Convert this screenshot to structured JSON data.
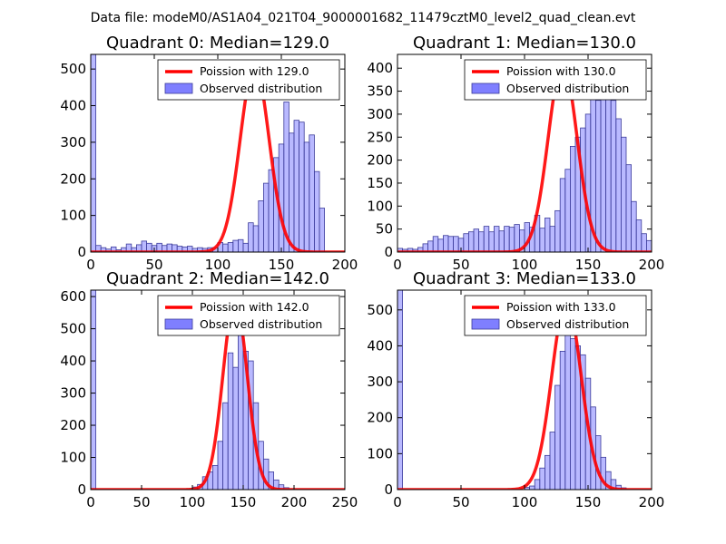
{
  "suptitle": "Data file: modeM0/AS1A04_021T04_9000001682_11479cztM0_level2_quad_clean.evt",
  "colors": {
    "bar_fill": "#7f7fff",
    "bar_edge": "#3b3b9a",
    "curve": "#ff0000"
  },
  "chart_data": [
    {
      "type": "bar",
      "title": "Quadrant 0: Median=129.0",
      "xlim": [
        0,
        200
      ],
      "ylim": [
        0,
        540
      ],
      "xticks": [
        0,
        50,
        100,
        150,
        200
      ],
      "yticks": [
        0,
        100,
        200,
        300,
        400,
        500
      ],
      "bin_width": 4,
      "legend": {
        "curve_label": "Poission with 129.0",
        "bars_label": "Observed distribution",
        "placement": "top-right"
      },
      "poisson_mean": 129.0,
      "poisson_peak": 510,
      "bars": [
        {
          "x": 0,
          "value": 540
        },
        {
          "x": 4,
          "value": 18
        },
        {
          "x": 8,
          "value": 12
        },
        {
          "x": 12,
          "value": 8
        },
        {
          "x": 16,
          "value": 14
        },
        {
          "x": 20,
          "value": 6
        },
        {
          "x": 24,
          "value": 12
        },
        {
          "x": 28,
          "value": 22
        },
        {
          "x": 32,
          "value": 12
        },
        {
          "x": 36,
          "value": 20
        },
        {
          "x": 40,
          "value": 30
        },
        {
          "x": 44,
          "value": 24
        },
        {
          "x": 48,
          "value": 18
        },
        {
          "x": 52,
          "value": 24
        },
        {
          "x": 56,
          "value": 18
        },
        {
          "x": 60,
          "value": 22
        },
        {
          "x": 64,
          "value": 20
        },
        {
          "x": 68,
          "value": 16
        },
        {
          "x": 72,
          "value": 14
        },
        {
          "x": 76,
          "value": 16
        },
        {
          "x": 80,
          "value": 10
        },
        {
          "x": 84,
          "value": 12
        },
        {
          "x": 88,
          "value": 10
        },
        {
          "x": 92,
          "value": 12
        },
        {
          "x": 96,
          "value": 12
        },
        {
          "x": 100,
          "value": 26
        },
        {
          "x": 104,
          "value": 22
        },
        {
          "x": 108,
          "value": 26
        },
        {
          "x": 112,
          "value": 32
        },
        {
          "x": 116,
          "value": 34
        },
        {
          "x": 120,
          "value": 24
        },
        {
          "x": 124,
          "value": 80
        },
        {
          "x": 128,
          "value": 72
        },
        {
          "x": 132,
          "value": 140
        },
        {
          "x": 136,
          "value": 188
        },
        {
          "x": 140,
          "value": 225
        },
        {
          "x": 144,
          "value": 258
        },
        {
          "x": 148,
          "value": 295
        },
        {
          "x": 152,
          "value": 410
        },
        {
          "x": 156,
          "value": 325
        },
        {
          "x": 160,
          "value": 360
        },
        {
          "x": 164,
          "value": 355
        },
        {
          "x": 168,
          "value": 300
        },
        {
          "x": 172,
          "value": 320
        },
        {
          "x": 176,
          "value": 220
        },
        {
          "x": 180,
          "value": 120
        }
      ]
    },
    {
      "type": "bar",
      "title": "Quadrant 1: Median=130.0",
      "xlim": [
        0,
        200
      ],
      "ylim": [
        0,
        430
      ],
      "xticks": [
        0,
        50,
        100,
        150,
        200
      ],
      "yticks": [
        0,
        50,
        100,
        150,
        200,
        250,
        300,
        350,
        400
      ],
      "bin_width": 4,
      "legend": {
        "curve_label": "Poission with 130.0",
        "bars_label": "Observed distribution",
        "placement": "top-right"
      },
      "poisson_mean": 130.0,
      "poisson_peak": 410,
      "bars": [
        {
          "x": 0,
          "value": 8
        },
        {
          "x": 4,
          "value": 6
        },
        {
          "x": 8,
          "value": 8
        },
        {
          "x": 12,
          "value": 6
        },
        {
          "x": 16,
          "value": 10
        },
        {
          "x": 20,
          "value": 18
        },
        {
          "x": 24,
          "value": 24
        },
        {
          "x": 28,
          "value": 34
        },
        {
          "x": 32,
          "value": 28
        },
        {
          "x": 36,
          "value": 36
        },
        {
          "x": 40,
          "value": 34
        },
        {
          "x": 44,
          "value": 34
        },
        {
          "x": 48,
          "value": 30
        },
        {
          "x": 52,
          "value": 40
        },
        {
          "x": 56,
          "value": 44
        },
        {
          "x": 60,
          "value": 50
        },
        {
          "x": 64,
          "value": 44
        },
        {
          "x": 68,
          "value": 56
        },
        {
          "x": 72,
          "value": 44
        },
        {
          "x": 76,
          "value": 56
        },
        {
          "x": 80,
          "value": 46
        },
        {
          "x": 84,
          "value": 56
        },
        {
          "x": 88,
          "value": 54
        },
        {
          "x": 92,
          "value": 60
        },
        {
          "x": 96,
          "value": 48
        },
        {
          "x": 100,
          "value": 64
        },
        {
          "x": 104,
          "value": 54
        },
        {
          "x": 108,
          "value": 80
        },
        {
          "x": 112,
          "value": 52
        },
        {
          "x": 116,
          "value": 74
        },
        {
          "x": 120,
          "value": 56
        },
        {
          "x": 124,
          "value": 90
        },
        {
          "x": 128,
          "value": 160
        },
        {
          "x": 132,
          "value": 180
        },
        {
          "x": 136,
          "value": 230
        },
        {
          "x": 140,
          "value": 250
        },
        {
          "x": 144,
          "value": 270
        },
        {
          "x": 148,
          "value": 300
        },
        {
          "x": 152,
          "value": 380
        },
        {
          "x": 156,
          "value": 330
        },
        {
          "x": 160,
          "value": 360
        },
        {
          "x": 164,
          "value": 400
        },
        {
          "x": 168,
          "value": 330
        },
        {
          "x": 172,
          "value": 290
        },
        {
          "x": 176,
          "value": 250
        },
        {
          "x": 180,
          "value": 190
        },
        {
          "x": 184,
          "value": 110
        },
        {
          "x": 188,
          "value": 70
        },
        {
          "x": 192,
          "value": 40
        },
        {
          "x": 196,
          "value": 25
        }
      ]
    },
    {
      "type": "bar",
      "title": "Quadrant 2: Median=142.0",
      "xlim": [
        0,
        250
      ],
      "ylim": [
        0,
        620
      ],
      "xticks": [
        0,
        50,
        100,
        150,
        200,
        250
      ],
      "yticks": [
        0,
        100,
        200,
        300,
        400,
        500,
        600
      ],
      "bin_width": 5,
      "legend": {
        "curve_label": "Poission with 142.0",
        "bars_label": "Observed distribution",
        "placement": "top-right"
      },
      "poisson_mean": 142.0,
      "poisson_peak": 590,
      "bars": [
        {
          "x": 0,
          "value": 620
        },
        {
          "x": 100,
          "value": 8
        },
        {
          "x": 105,
          "value": 16
        },
        {
          "x": 110,
          "value": 40
        },
        {
          "x": 115,
          "value": 55
        },
        {
          "x": 120,
          "value": 75
        },
        {
          "x": 125,
          "value": 150
        },
        {
          "x": 130,
          "value": 270
        },
        {
          "x": 135,
          "value": 425
        },
        {
          "x": 140,
          "value": 380
        },
        {
          "x": 145,
          "value": 510
        },
        {
          "x": 150,
          "value": 430
        },
        {
          "x": 155,
          "value": 400
        },
        {
          "x": 160,
          "value": 270
        },
        {
          "x": 165,
          "value": 150
        },
        {
          "x": 170,
          "value": 95
        },
        {
          "x": 175,
          "value": 55
        },
        {
          "x": 180,
          "value": 30
        },
        {
          "x": 185,
          "value": 15
        },
        {
          "x": 190,
          "value": 6
        }
      ]
    },
    {
      "type": "bar",
      "title": "Quadrant 3: Median=133.0",
      "xlim": [
        0,
        200
      ],
      "ylim": [
        0,
        555
      ],
      "xticks": [
        0,
        50,
        100,
        150,
        200
      ],
      "yticks": [
        0,
        100,
        200,
        300,
        400,
        500
      ],
      "bin_width": 4,
      "legend": {
        "curve_label": "Poission with 133.0",
        "bars_label": "Observed distribution",
        "placement": "top-right"
      },
      "poisson_mean": 133.0,
      "poisson_peak": 525,
      "bars": [
        {
          "x": 0,
          "value": 555
        },
        {
          "x": 100,
          "value": 6
        },
        {
          "x": 104,
          "value": 10
        },
        {
          "x": 108,
          "value": 28
        },
        {
          "x": 112,
          "value": 60
        },
        {
          "x": 116,
          "value": 95
        },
        {
          "x": 120,
          "value": 160
        },
        {
          "x": 124,
          "value": 290
        },
        {
          "x": 128,
          "value": 385
        },
        {
          "x": 132,
          "value": 440
        },
        {
          "x": 136,
          "value": 420
        },
        {
          "x": 140,
          "value": 400
        },
        {
          "x": 144,
          "value": 375
        },
        {
          "x": 148,
          "value": 310
        },
        {
          "x": 152,
          "value": 230
        },
        {
          "x": 156,
          "value": 150
        },
        {
          "x": 160,
          "value": 90
        },
        {
          "x": 164,
          "value": 50
        },
        {
          "x": 168,
          "value": 28
        },
        {
          "x": 172,
          "value": 12
        },
        {
          "x": 176,
          "value": 5
        }
      ]
    }
  ]
}
